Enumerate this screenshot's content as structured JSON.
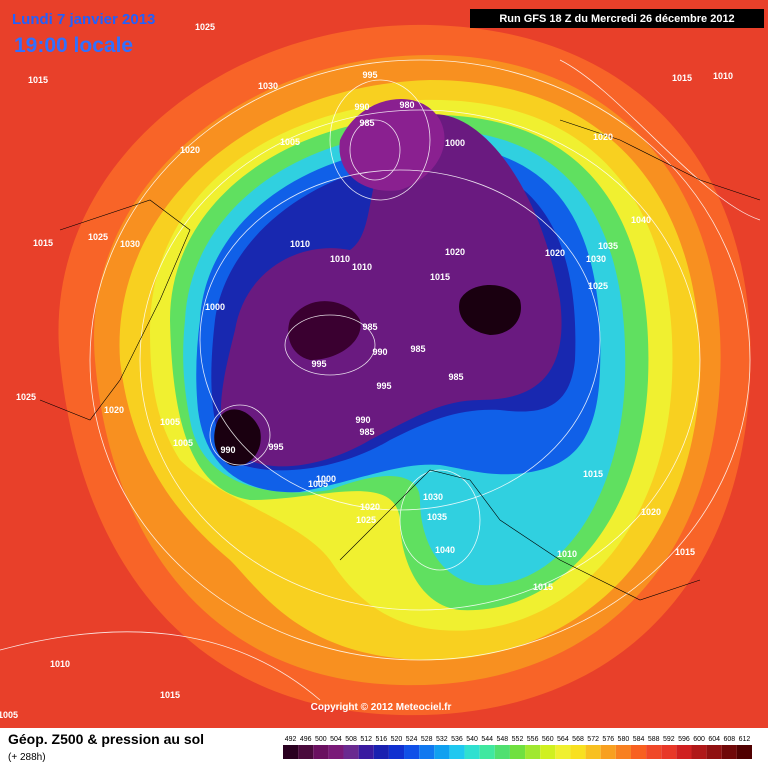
{
  "header": {
    "title": "Lundi 7 janvier 2013",
    "subtitle": "19:00 locale",
    "run": "Run GFS 18 Z du Mercredi 26 décembre 2012"
  },
  "footer": {
    "field": "Géop. Z500 & pression au sol",
    "lead": "(+ 288h)",
    "copyright": "Copyright © 2012 Meteociel.fr"
  },
  "colorbar": {
    "values": [
      492,
      496,
      500,
      504,
      508,
      512,
      516,
      520,
      524,
      528,
      532,
      536,
      540,
      544,
      548,
      552,
      556,
      560,
      564,
      568,
      572,
      576,
      580,
      584,
      588,
      592,
      596,
      600,
      604,
      608,
      612
    ],
    "colors": [
      "#2a0020",
      "#4a0a3c",
      "#6a1060",
      "#7a1a78",
      "#6a2a90",
      "#3a1aa0",
      "#1a20b0",
      "#1030d0",
      "#1050e8",
      "#1078f0",
      "#10a0f0",
      "#20c8f0",
      "#30e0d0",
      "#40e8a0",
      "#50e070",
      "#70e040",
      "#a0e830",
      "#d0f020",
      "#f0f030",
      "#f8e020",
      "#f8c020",
      "#f8a020",
      "#f88020",
      "#f86020",
      "#f04828",
      "#e83828",
      "#d02020",
      "#b01818",
      "#901010",
      "#700808",
      "#500000"
    ]
  },
  "isobar_labels": [
    1025,
    1015,
    1030,
    995,
    980,
    990,
    985,
    1000,
    1005,
    1020,
    1015,
    1010,
    1020,
    1040,
    1035,
    1030,
    1025,
    1020,
    1020,
    1015,
    1010,
    1010,
    1010,
    1000,
    985,
    995,
    990,
    985,
    985,
    995,
    990,
    985,
    1005,
    1005,
    1020,
    1025,
    1015,
    1025,
    1030,
    990,
    995,
    1005,
    1000,
    1020,
    1025,
    1030,
    1035,
    1040,
    1010,
    1015,
    1015,
    1020,
    1015,
    1010,
    1015,
    1005
  ]
}
